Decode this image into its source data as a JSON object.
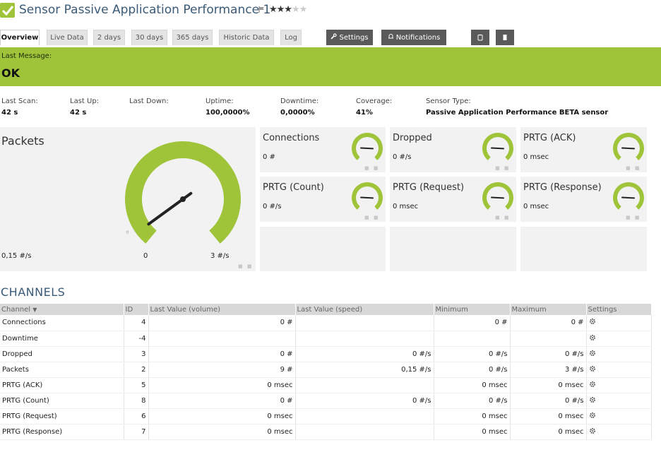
{
  "header": {
    "title": "Sensor Passive Application Performance 1",
    "flag_icon": "flag-icon",
    "stars_filled": "★★★",
    "stars_empty": "★★",
    "check_color": "#9fc43a"
  },
  "tabs": [
    {
      "label": "Overview"
    },
    {
      "label": "Live Data"
    },
    {
      "label": "2 days"
    },
    {
      "label": "30 days"
    },
    {
      "label": "365 days"
    },
    {
      "label": "Historic Data"
    },
    {
      "label": "Log"
    }
  ],
  "actions": {
    "settings_label": "Settings",
    "notifications_label": "Notifications",
    "settings_icon": "wrench-icon",
    "notifications_icon": "bell-icon",
    "extra_icon_1": "clipboard-icon",
    "extra_icon_2": "delete-icon"
  },
  "status": {
    "last_message_label": "Last Message:",
    "last_message_value": "OK",
    "color": "#9fc43a"
  },
  "stats": {
    "last_scan_label": "Last Scan:",
    "last_scan_value": "42 s",
    "last_up_label": "Last Up:",
    "last_up_value": "42 s",
    "last_down_label": "Last Down:",
    "uptime_label": "Uptime:",
    "uptime_value": "100,0000%",
    "downtime_label": "Downtime:",
    "downtime_value": "0,0000%",
    "coverage_label": "Coverage:",
    "coverage_value": "41%",
    "sensor_type_label": "Sensor Type:",
    "sensor_type_value": "Passive Application Performance BETA sensor"
  },
  "big_gauge": {
    "name": "Packets",
    "value": "0,15 #/s",
    "min_label": "0",
    "max_label": "3 #/s",
    "needle_fraction": 0.05
  },
  "small_gauges": [
    {
      "name": "Connections",
      "value": "0 #",
      "needle_fraction": 0
    },
    {
      "name": "Dropped",
      "value": "0 #/s",
      "needle_fraction": 0
    },
    {
      "name": "PRTG (ACK)",
      "value": "0 msec",
      "needle_fraction": 0
    },
    {
      "name": "PRTG (Count)",
      "value": "0 #/s",
      "needle_fraction": 0
    },
    {
      "name": "PRTG (Request)",
      "value": "0 msec",
      "needle_fraction": 0
    },
    {
      "name": "PRTG (Response)",
      "value": "0 msec",
      "needle_fraction": 0
    }
  ],
  "channels": {
    "title": "CHANNELS",
    "headers": {
      "channel": "Channel",
      "id": "ID",
      "last_volume": "Last Value (volume)",
      "last_speed": "Last Value (speed)",
      "minimum": "Minimum",
      "maximum": "Maximum",
      "settings": "Settings"
    },
    "rows": [
      {
        "channel": "Connections",
        "id": "4",
        "volume": "0 #",
        "speed": "",
        "min": "0 #",
        "max": "0 #"
      },
      {
        "channel": "Downtime",
        "id": "-4",
        "volume": "",
        "speed": "",
        "min": "",
        "max": ""
      },
      {
        "channel": "Dropped",
        "id": "3",
        "volume": "0 #",
        "speed": "0 #/s",
        "min": "0 #/s",
        "max": "0 #/s"
      },
      {
        "channel": "Packets",
        "id": "2",
        "volume": "9 #",
        "speed": "0,15 #/s",
        "min": "0 #/s",
        "max": "3 #/s"
      },
      {
        "channel": "PRTG (ACK)",
        "id": "5",
        "volume": "0 msec",
        "speed": "",
        "min": "0 msec",
        "max": "0 msec"
      },
      {
        "channel": "PRTG (Count)",
        "id": "8",
        "volume": "0 #",
        "speed": "0 #/s",
        "min": "0 #/s",
        "max": "0 #/s"
      },
      {
        "channel": "PRTG (Request)",
        "id": "6",
        "volume": "0 msec",
        "speed": "",
        "min": "0 msec",
        "max": "0 msec"
      },
      {
        "channel": "PRTG (Response)",
        "id": "7",
        "volume": "0 msec",
        "speed": "",
        "min": "0 msec",
        "max": "0 msec"
      }
    ]
  }
}
